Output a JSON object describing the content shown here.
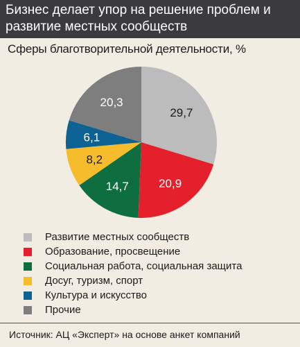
{
  "chart_data": {
    "type": "pie",
    "title": "Бизнес делает упор на решение проблем и развитие местных сообществ",
    "subtitle": "Сферы благотворительной деятельности, %",
    "slices": [
      {
        "label": "Развитие местных сообществ",
        "value": 29.7,
        "display": "29,7",
        "color": "#bcbcbc",
        "text_color": "#1a1a1a"
      },
      {
        "label": "Образование, просвещение",
        "value": 20.9,
        "display": "20,9",
        "color": "#e3202b",
        "text_color": "#ffffff"
      },
      {
        "label": "Социальная работа, социальная защита",
        "value": 14.7,
        "display": "14,7",
        "color": "#0f6e3f",
        "text_color": "#ffffff"
      },
      {
        "label": "Досуг, туризм, спорт",
        "value": 8.2,
        "display": "8,2",
        "color": "#f7bc2b",
        "text_color": "#1a1a1a"
      },
      {
        "label": "Культура и искусство",
        "value": 6.1,
        "display": "6,1",
        "color": "#0b6293",
        "text_color": "#ffffff"
      },
      {
        "label": "Прочие",
        "value": 20.3,
        "display": "20,3",
        "color": "#7e7e7e",
        "text_color": "#ffffff"
      }
    ],
    "start": "12 o'clock",
    "direction": "clockwise"
  },
  "source": "Источник: АЦ «Эксперт» на основе анкет компаний"
}
